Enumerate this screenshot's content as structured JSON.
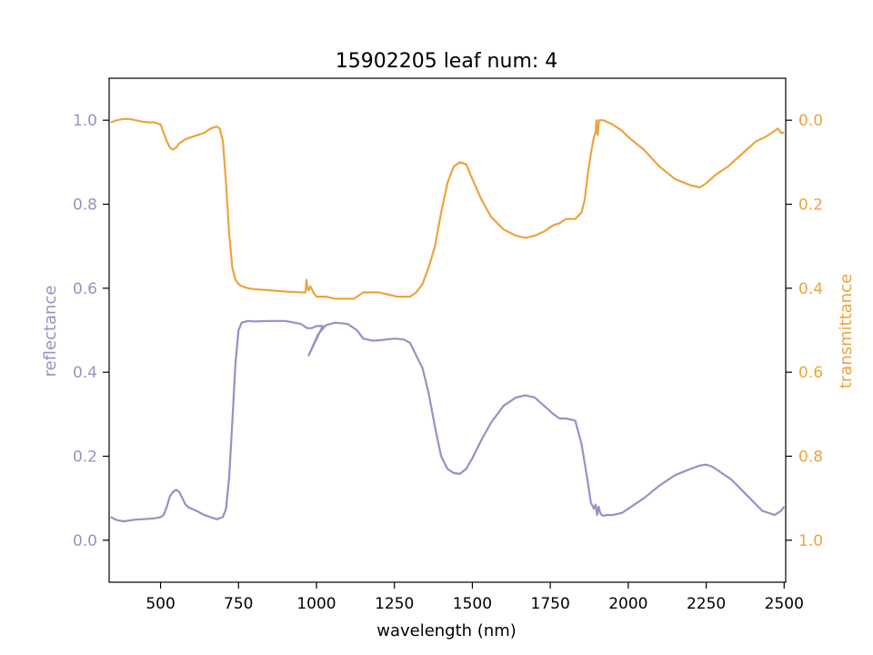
{
  "chart_data": {
    "type": "line",
    "title": "15902205 leaf num: 4",
    "xlabel": "wavelength (nm)",
    "ylabel_left": "reflectance",
    "ylabel_right": "transmittance",
    "xlim": [
      335,
      2505
    ],
    "ylim_left": [
      -0.1,
      1.1
    ],
    "ylim_right": [
      1.1,
      -0.1
    ],
    "xticks": [
      500,
      750,
      1000,
      1250,
      1500,
      1750,
      2000,
      2250,
      2500
    ],
    "yticks_left": [
      0.0,
      0.2,
      0.4,
      0.6,
      0.8,
      1.0
    ],
    "yticks_right": [
      0.0,
      0.2,
      0.4,
      0.6,
      0.8,
      1.0
    ],
    "grid": false,
    "series": [
      {
        "name": "reflectance",
        "axis": "left",
        "color": "#9891c4",
        "x": [
          340,
          360,
          380,
          400,
          420,
          440,
          460,
          480,
          500,
          510,
          520,
          530,
          540,
          550,
          560,
          570,
          580,
          590,
          600,
          620,
          640,
          660,
          680,
          700,
          710,
          720,
          730,
          740,
          750,
          760,
          780,
          800,
          850,
          900,
          950,
          970,
          975,
          985,
          1000,
          1020,
          975,
          990,
          1005,
          1030,
          1060,
          1100,
          1130,
          1150,
          1180,
          1200,
          1250,
          1280,
          1300,
          1320,
          1340,
          1360,
          1380,
          1400,
          1420,
          1440,
          1460,
          1480,
          1500,
          1530,
          1560,
          1600,
          1640,
          1670,
          1700,
          1730,
          1760,
          1780,
          1800,
          1830,
          1850,
          1870,
          1880,
          1890,
          1895,
          1900,
          1905,
          1910,
          1915,
          1920,
          1930,
          1950,
          1980,
          2000,
          2050,
          2100,
          2150,
          2200,
          2230,
          2250,
          2270,
          2300,
          2330,
          2350,
          2370,
          2390,
          2410,
          2430,
          2450,
          2470,
          2490,
          2500
        ],
        "y": [
          0.055,
          0.048,
          0.045,
          0.047,
          0.049,
          0.05,
          0.051,
          0.052,
          0.055,
          0.06,
          0.08,
          0.105,
          0.115,
          0.12,
          0.115,
          0.1,
          0.085,
          0.078,
          0.075,
          0.068,
          0.06,
          0.055,
          0.05,
          0.055,
          0.075,
          0.15,
          0.28,
          0.42,
          0.5,
          0.518,
          0.522,
          0.521,
          0.522,
          0.522,
          0.515,
          0.505,
          0.505,
          0.505,
          0.51,
          0.51,
          0.44,
          0.465,
          0.49,
          0.512,
          0.518,
          0.515,
          0.5,
          0.48,
          0.475,
          0.476,
          0.48,
          0.478,
          0.47,
          0.44,
          0.41,
          0.35,
          0.27,
          0.2,
          0.17,
          0.16,
          0.158,
          0.17,
          0.195,
          0.24,
          0.28,
          0.32,
          0.34,
          0.345,
          0.34,
          0.32,
          0.3,
          0.29,
          0.29,
          0.285,
          0.23,
          0.14,
          0.09,
          0.075,
          0.085,
          0.06,
          0.08,
          0.065,
          0.06,
          0.058,
          0.06,
          0.06,
          0.065,
          0.075,
          0.1,
          0.13,
          0.155,
          0.17,
          0.178,
          0.18,
          0.175,
          0.16,
          0.145,
          0.13,
          0.115,
          0.1,
          0.085,
          0.07,
          0.065,
          0.06,
          0.07,
          0.08
        ]
      },
      {
        "name": "transmittance",
        "axis": "right",
        "color": "#eda33f",
        "x": [
          340,
          360,
          380,
          400,
          420,
          440,
          460,
          480,
          500,
          510,
          520,
          530,
          540,
          550,
          560,
          570,
          580,
          600,
          620,
          640,
          660,
          680,
          690,
          700,
          710,
          720,
          730,
          740,
          750,
          760,
          780,
          800,
          850,
          900,
          950,
          965,
          968,
          971,
          975,
          980,
          990,
          1000,
          1010,
          1030,
          1060,
          1100,
          1120,
          1130,
          1150,
          1180,
          1200,
          1230,
          1260,
          1300,
          1320,
          1340,
          1360,
          1380,
          1400,
          1420,
          1440,
          1460,
          1480,
          1500,
          1530,
          1560,
          1600,
          1640,
          1670,
          1700,
          1730,
          1760,
          1780,
          1800,
          1830,
          1850,
          1860,
          1870,
          1880,
          1890,
          1895,
          1898,
          1902,
          1906,
          1910,
          1920,
          1950,
          1980,
          2000,
          2050,
          2100,
          2150,
          2200,
          2230,
          2250,
          2280,
          2320,
          2350,
          2380,
          2410,
          2440,
          2460,
          2480,
          2490,
          2500
        ],
        "y": [
          0.005,
          0.0,
          -0.003,
          -0.003,
          0.0,
          0.003,
          0.005,
          0.005,
          0.01,
          0.03,
          0.05,
          0.065,
          0.07,
          0.065,
          0.055,
          0.05,
          0.045,
          0.04,
          0.035,
          0.03,
          0.02,
          0.015,
          0.02,
          0.05,
          0.15,
          0.27,
          0.35,
          0.38,
          0.39,
          0.395,
          0.4,
          0.402,
          0.405,
          0.408,
          0.41,
          0.41,
          0.38,
          0.4,
          0.405,
          0.395,
          0.41,
          0.42,
          0.42,
          0.42,
          0.425,
          0.425,
          0.425,
          0.42,
          0.41,
          0.41,
          0.41,
          0.415,
          0.42,
          0.42,
          0.41,
          0.39,
          0.35,
          0.3,
          0.22,
          0.15,
          0.11,
          0.1,
          0.105,
          0.14,
          0.19,
          0.23,
          0.26,
          0.275,
          0.28,
          0.275,
          0.265,
          0.25,
          0.245,
          0.235,
          0.235,
          0.22,
          0.19,
          0.13,
          0.08,
          0.04,
          0.03,
          0.0,
          0.035,
          0.0,
          0.0,
          0.0,
          0.01,
          0.025,
          0.04,
          0.07,
          0.11,
          0.14,
          0.155,
          0.16,
          0.15,
          0.13,
          0.11,
          0.09,
          0.07,
          0.05,
          0.04,
          0.03,
          0.02,
          0.03,
          0.03
        ]
      }
    ]
  }
}
